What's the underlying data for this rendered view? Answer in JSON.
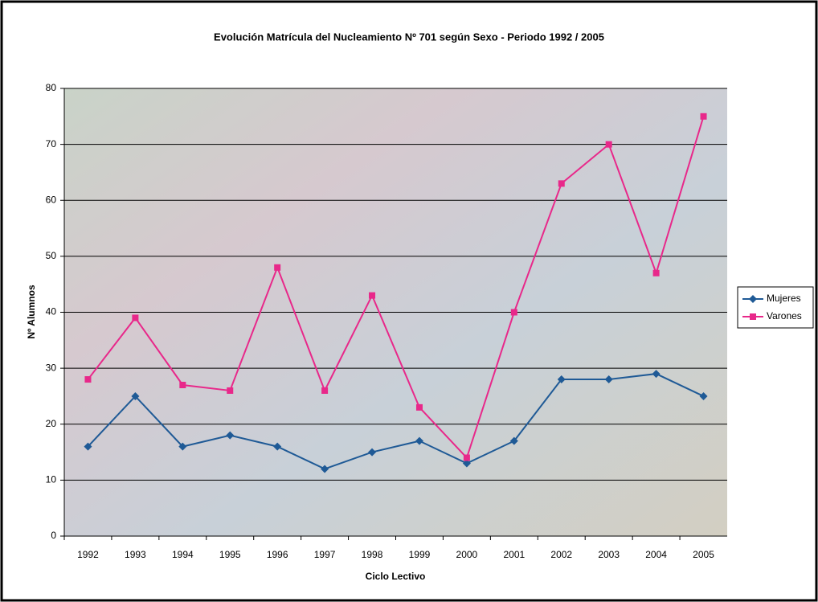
{
  "chart_data": {
    "type": "line",
    "title": "Evolución Matrícula del Nucleamiento Nº 701 según Sexo - Periodo 1992 / 2005",
    "x_label": "Ciclo Lectivo",
    "y_label": "Nº Alumnos",
    "categories": [
      "1992",
      "1993",
      "1994",
      "1995",
      "1996",
      "1997",
      "1998",
      "1999",
      "2000",
      "2001",
      "2002",
      "2003",
      "2004",
      "2005"
    ],
    "series": [
      {
        "name": "Mujeres",
        "color": "#1f5a96",
        "marker": "diamond",
        "values": [
          16,
          25,
          16,
          18,
          16,
          12,
          15,
          17,
          13,
          17,
          28,
          28,
          29,
          25
        ]
      },
      {
        "name": "Varones",
        "color": "#e8288a",
        "marker": "square",
        "values": [
          28,
          39,
          27,
          26,
          48,
          26,
          43,
          23,
          14,
          40,
          63,
          70,
          47,
          75
        ]
      }
    ],
    "ylim": [
      0,
      80
    ],
    "yticks": [
      0,
      10,
      20,
      30,
      40,
      50,
      60,
      70,
      80
    ],
    "grid": true,
    "legend": "right"
  }
}
